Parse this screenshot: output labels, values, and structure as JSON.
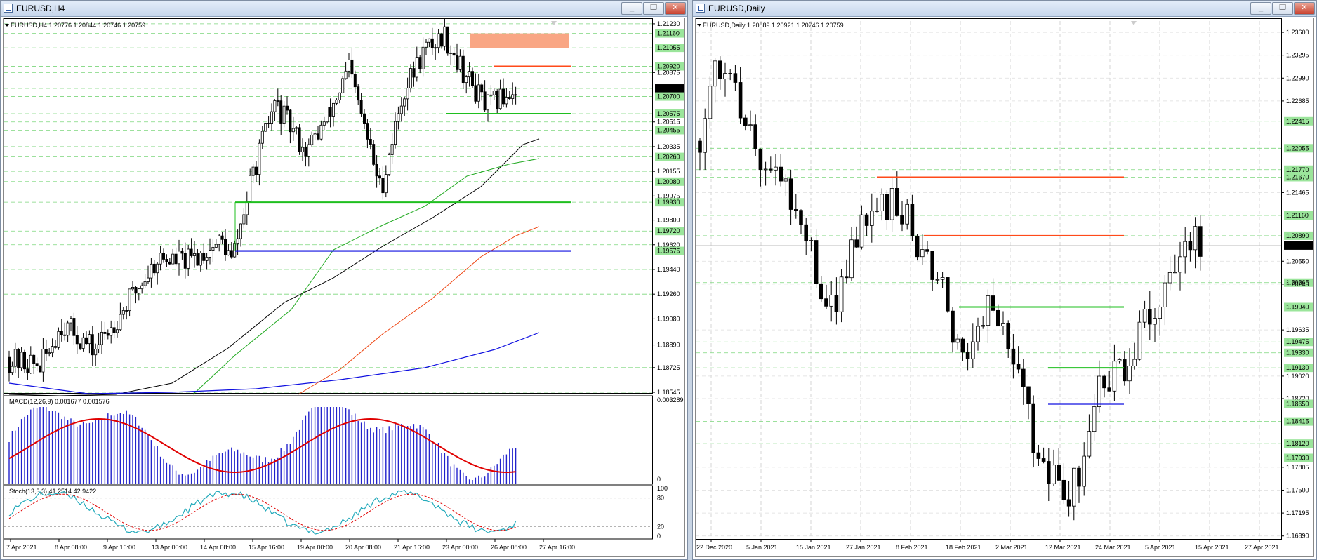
{
  "left_window": {
    "title": "EURUSD,H4",
    "header_symbol": "EURUSD,H4",
    "header_values": "1.20776 1.20844 1.20746 1.20759",
    "price_ticks": [
      "1.21230",
      "1.21160",
      "1.21055",
      "1.20920",
      "1.20875",
      "1.20759",
      "1.20700",
      "1.20575",
      "1.20515",
      "1.20455",
      "1.20335",
      "1.20260",
      "1.20155",
      "1.20080",
      "1.19975",
      "1.19930",
      "1.19800",
      "1.19720",
      "1.19620",
      "1.19575",
      "1.19440",
      "1.19260",
      "1.19080",
      "1.18890",
      "1.18725",
      "1.18545"
    ],
    "macd_label": "MACD(12,26,9) 0.001677 0.001576",
    "macd_ticks": [
      "0.003289",
      "0"
    ],
    "stoch_label": "Stoch(13,3,3) 41.2514 42.9422",
    "stoch_ticks": [
      "100",
      "80",
      "20",
      "0"
    ],
    "time_labels": [
      "7 Apr 2021",
      "8 Apr 08:00",
      "9 Apr 16:00",
      "13 Apr 00:00",
      "14 Apr 08:00",
      "15 Apr 16:00",
      "19 Apr 00:00",
      "20 Apr 08:00",
      "21 Apr 16:00",
      "23 Apr 00:00",
      "26 Apr 08:00",
      "27 Apr 16:00"
    ],
    "current_price": "1.20759"
  },
  "right_window": {
    "title": "EURUSD,Daily",
    "header_symbol": "EURUSD,Daily",
    "header_values": "1.20889 1.20921 1.20746 1.20759",
    "price_ticks": [
      "1.23600",
      "1.23295",
      "1.22990",
      "1.22685",
      "1.22415",
      "1.22055",
      "1.21770",
      "1.21670",
      "1.21465",
      "1.21160",
      "1.20890",
      "1.20759",
      "1.20550",
      "1.20265",
      "1.20245",
      "1.19940",
      "1.19635",
      "1.19475",
      "1.19330",
      "1.19130",
      "1.19020",
      "1.18720",
      "1.18650",
      "1.18415",
      "1.18120",
      "1.17930",
      "1.17805",
      "1.17500",
      "1.17195",
      "1.16890"
    ],
    "time_labels": [
      "22 Dec 2020",
      "5 Jan 2021",
      "15 Jan 2021",
      "27 Jan 2021",
      "8 Feb 2021",
      "18 Feb 2021",
      "2 Mar 2021",
      "12 Mar 2021",
      "24 Mar 2021",
      "5 Apr 2021",
      "15 Apr 2021",
      "27 Apr 2021"
    ],
    "current_price": "1.20759"
  },
  "window_buttons": {
    "minimize": "_",
    "restore": "❐",
    "close": "✕"
  },
  "colors": {
    "bull": "#ffffff",
    "bear": "#000000",
    "support": "#1fbf1f",
    "resistance": "#ff4a1a",
    "blue_line": "#1010e0",
    "grid_green": "#7cd67c",
    "macd_hist": "#2222cc",
    "macd_signal": "#e00000",
    "stoch_main": "#22aabb",
    "stoch_signal": "#e00000"
  }
}
